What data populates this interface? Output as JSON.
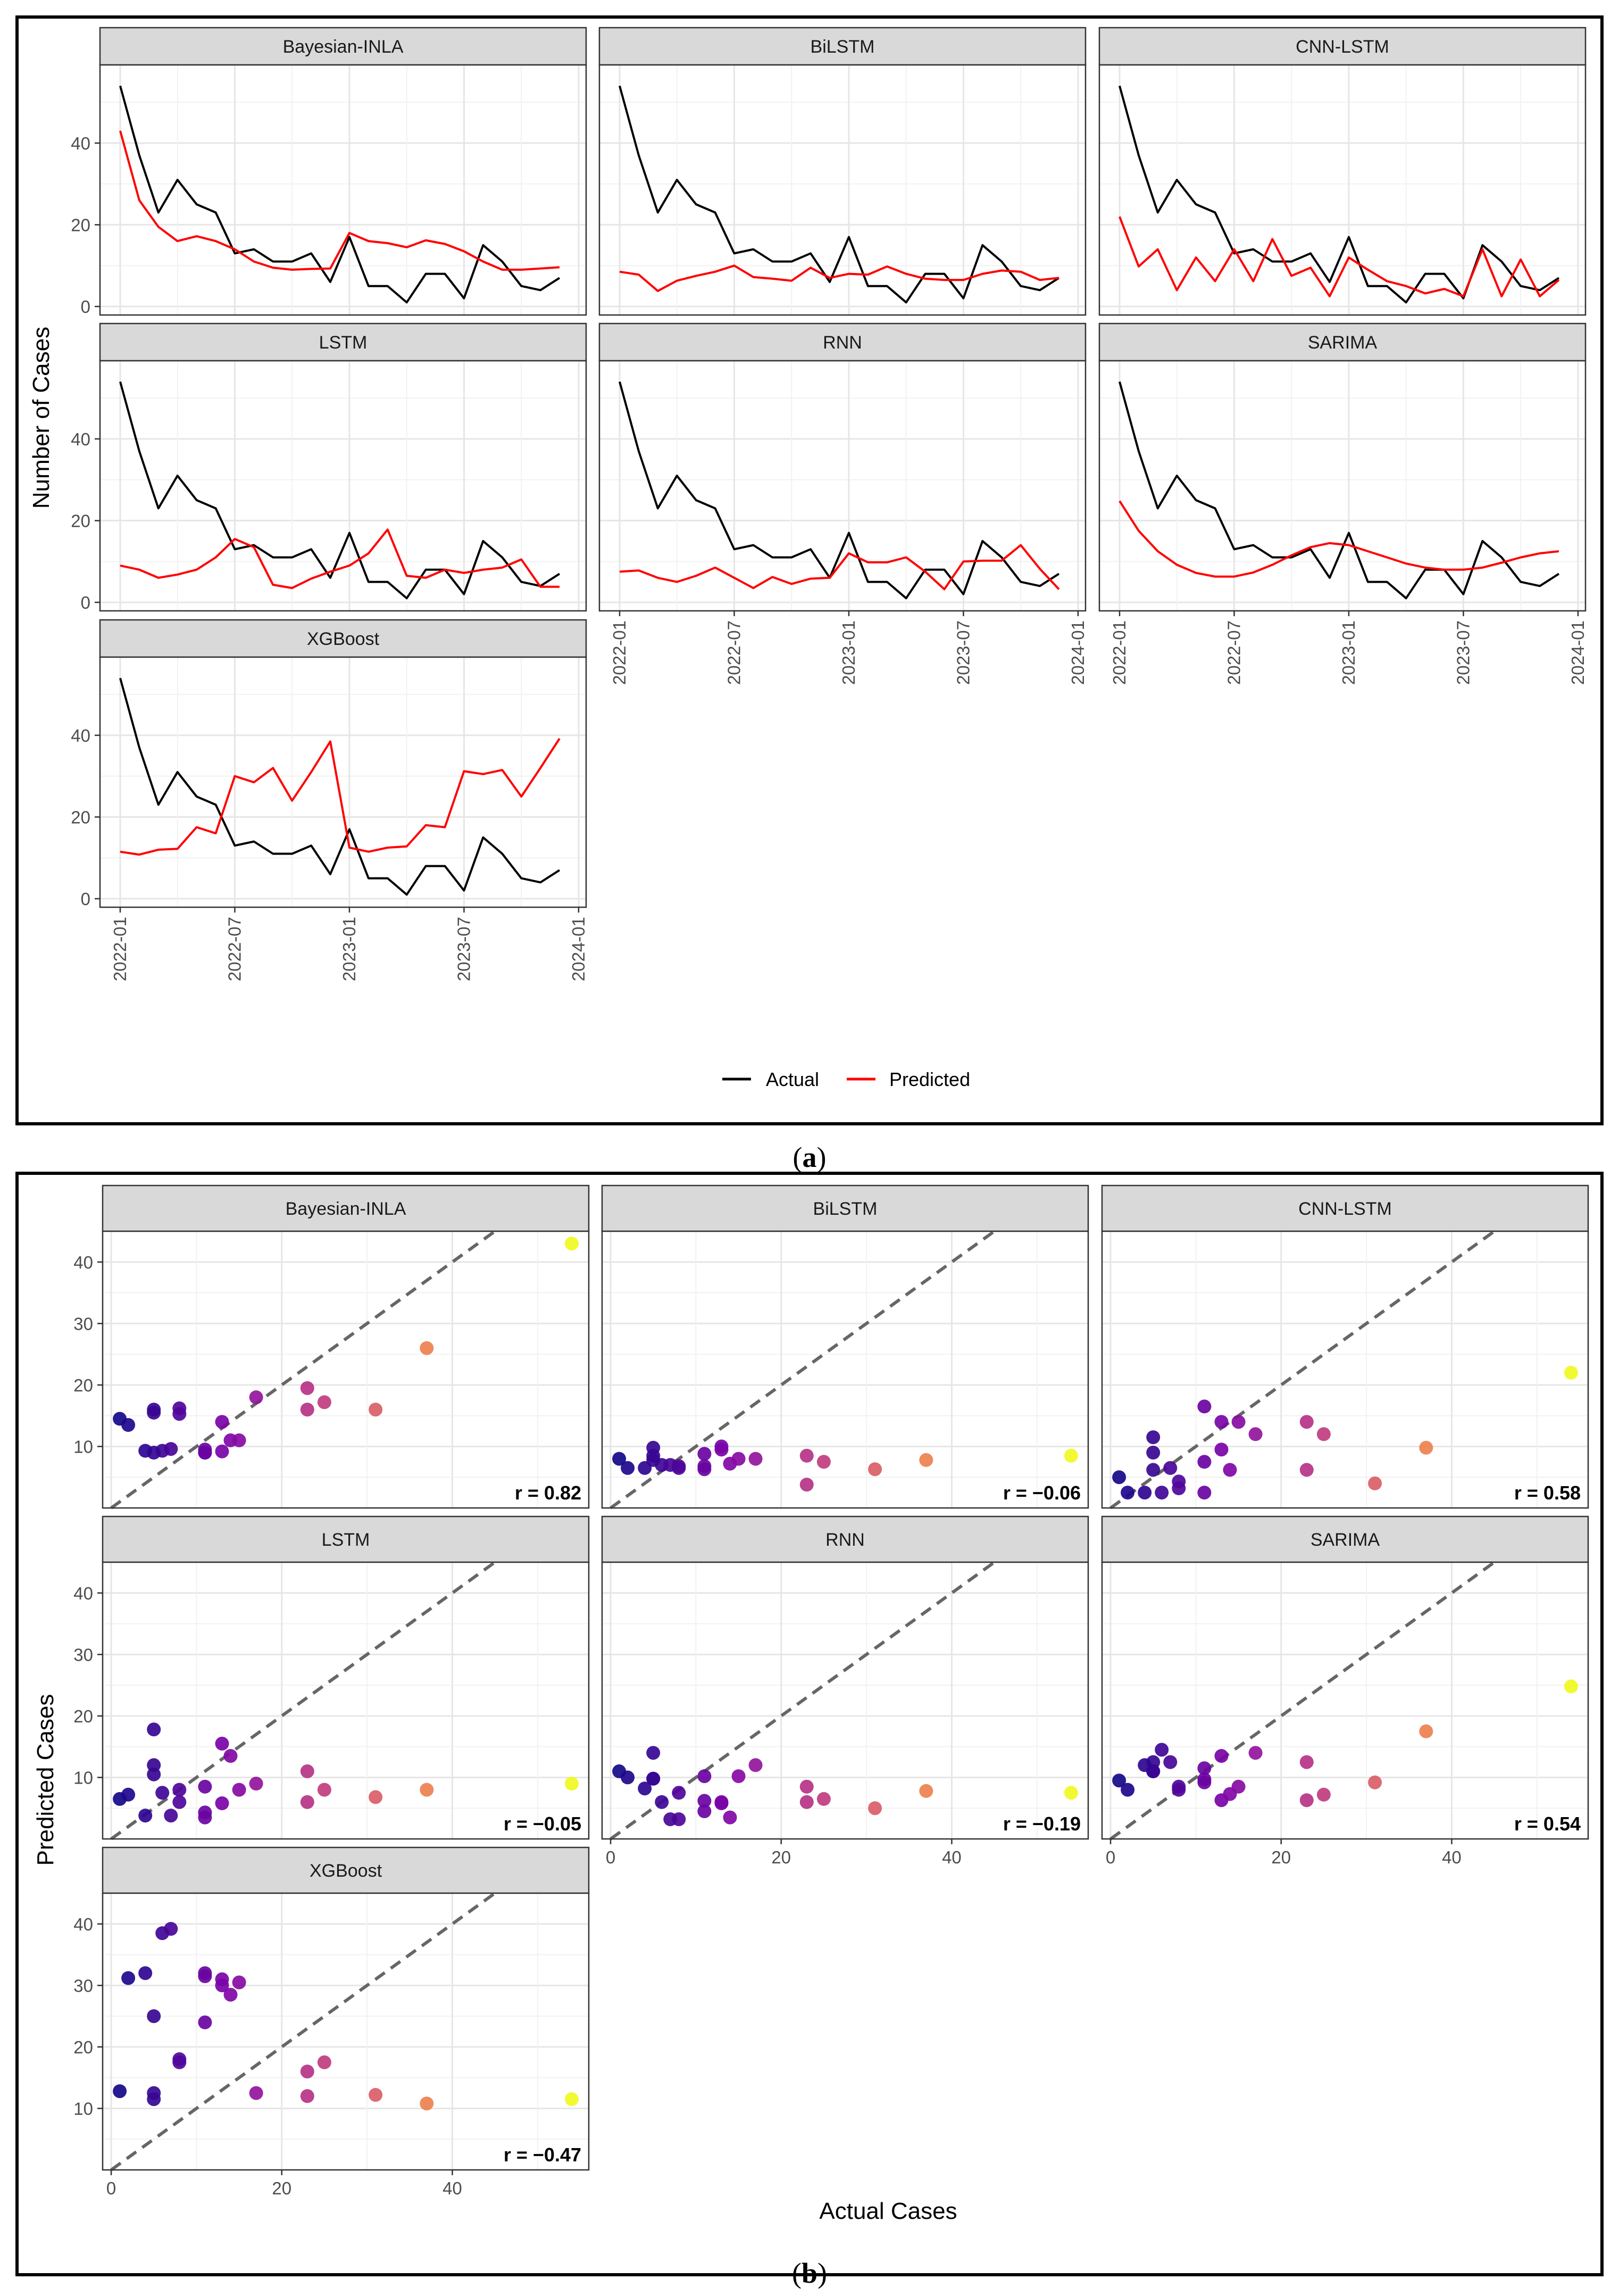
{
  "chart_data": [
    {
      "id": "a",
      "type": "line",
      "panel_label": "(a)",
      "panel_letter": "a",
      "ylabel": "Number of Cases",
      "xlabel": "",
      "x_ticks": [
        "2022-01",
        "2022-07",
        "2023-01",
        "2023-07",
        "2024-01"
      ],
      "y_ticks": [
        0,
        20,
        40
      ],
      "ylim": [
        0,
        56
      ],
      "grid": true,
      "legend": {
        "position": "bottom",
        "entries": [
          {
            "name": "Actual",
            "color": "#000000"
          },
          {
            "name": "Predicted",
            "color": "#ff0000"
          }
        ]
      },
      "x": [
        "2022-01",
        "2022-02",
        "2022-03",
        "2022-04",
        "2022-05",
        "2022-06",
        "2022-07",
        "2022-08",
        "2022-09",
        "2022-10",
        "2022-11",
        "2022-12",
        "2023-01",
        "2023-02",
        "2023-03",
        "2023-04",
        "2023-05",
        "2023-06",
        "2023-07",
        "2023-08",
        "2023-09",
        "2023-10",
        "2023-11",
        "2023-12"
      ],
      "actual": [
        54,
        37,
        23,
        31,
        25,
        23,
        13,
        14,
        11,
        11,
        13,
        6,
        17,
        5,
        5,
        1,
        8,
        8,
        2,
        15,
        11,
        5,
        4,
        7
      ],
      "panels": [
        {
          "name": "Bayesian-INLA",
          "predicted": [
            43,
            26,
            19.5,
            16,
            17.2,
            16,
            14,
            11,
            9.5,
            9,
            9.2,
            9.3,
            18,
            16,
            15.5,
            14.5,
            16.2,
            15.3,
            13.5,
            11,
            9,
            9,
            9.3,
            9.6
          ]
        },
        {
          "name": "BiLSTM",
          "predicted": [
            8.5,
            7.8,
            3.8,
            6.3,
            7.5,
            8.5,
            10,
            7.2,
            6.8,
            6.3,
            9.5,
            7,
            8,
            7.8,
            9.8,
            8,
            6.8,
            6.5,
            6.5,
            8,
            8.8,
            8.5,
            6.5,
            7
          ]
        },
        {
          "name": "CNN-LSTM",
          "predicted": [
            22,
            9.8,
            14,
            4,
            12,
            6.2,
            14,
            6.2,
            16.5,
            7.5,
            9.5,
            2.5,
            12,
            9,
            6.2,
            5,
            3.2,
            4.3,
            2.5,
            14,
            2.5,
            11.5,
            2.5,
            6.5
          ]
        },
        {
          "name": "LSTM",
          "predicted": [
            9,
            8,
            6,
            6.8,
            8,
            11,
            15.5,
            13.5,
            4.3,
            3.5,
            5.8,
            7.5,
            9,
            12,
            17.8,
            6.5,
            6,
            8,
            7.2,
            8,
            8.5,
            10.5,
            3.8,
            3.8
          ]
        },
        {
          "name": "RNN",
          "predicted": [
            7.5,
            7.8,
            6,
            5,
            6.5,
            8.5,
            6,
            3.5,
            6.2,
            4.5,
            5.8,
            6,
            12,
            9.8,
            9.8,
            11,
            7.5,
            3.2,
            10,
            10.2,
            10.2,
            14,
            8.2,
            3.2
          ]
        },
        {
          "name": "SARIMA",
          "predicted": [
            24.8,
            17.5,
            12.5,
            9.2,
            7.2,
            6.3,
            6.3,
            7.3,
            9.2,
            11.5,
            13.5,
            14.5,
            14,
            12.5,
            11,
            9.5,
            8.5,
            8,
            8,
            8.5,
            9.7,
            11,
            12,
            12.5
          ]
        },
        {
          "name": "XGBoost",
          "predicted": [
            11.5,
            10.8,
            12,
            12.2,
            17.5,
            16,
            30,
            28.5,
            32,
            24,
            31,
            38.5,
            12.5,
            11.5,
            12.5,
            12.8,
            18,
            17.5,
            31.2,
            30.5,
            31.5,
            25,
            32,
            39.2
          ]
        }
      ]
    },
    {
      "id": "b",
      "type": "scatter",
      "panel_label": "(b)",
      "panel_letter": "b",
      "xlabel": "Actual Cases",
      "ylabel": "Predicted Cases",
      "x_ticks": [
        0,
        20,
        40
      ],
      "y_ticks": [
        10,
        20,
        30,
        40
      ],
      "xlim": [
        -1,
        56
      ],
      "ylim": [
        0,
        45
      ],
      "grid": true,
      "reference_line": "y = x (dashed)",
      "color_scale": "plasma (by actual cases)",
      "panels": [
        {
          "name": "Bayesian-INLA",
          "r_label": "r = 0.82"
        },
        {
          "name": "BiLSTM",
          "r_label": "r = −0.06"
        },
        {
          "name": "CNN-LSTM",
          "r_label": "r = 0.58"
        },
        {
          "name": "LSTM",
          "r_label": "r = −0.05"
        },
        {
          "name": "RNN",
          "r_label": "r = −0.19"
        },
        {
          "name": "SARIMA",
          "r_label": "r = 0.54"
        },
        {
          "name": "XGBoost",
          "r_label": "r = −0.47"
        }
      ]
    }
  ]
}
